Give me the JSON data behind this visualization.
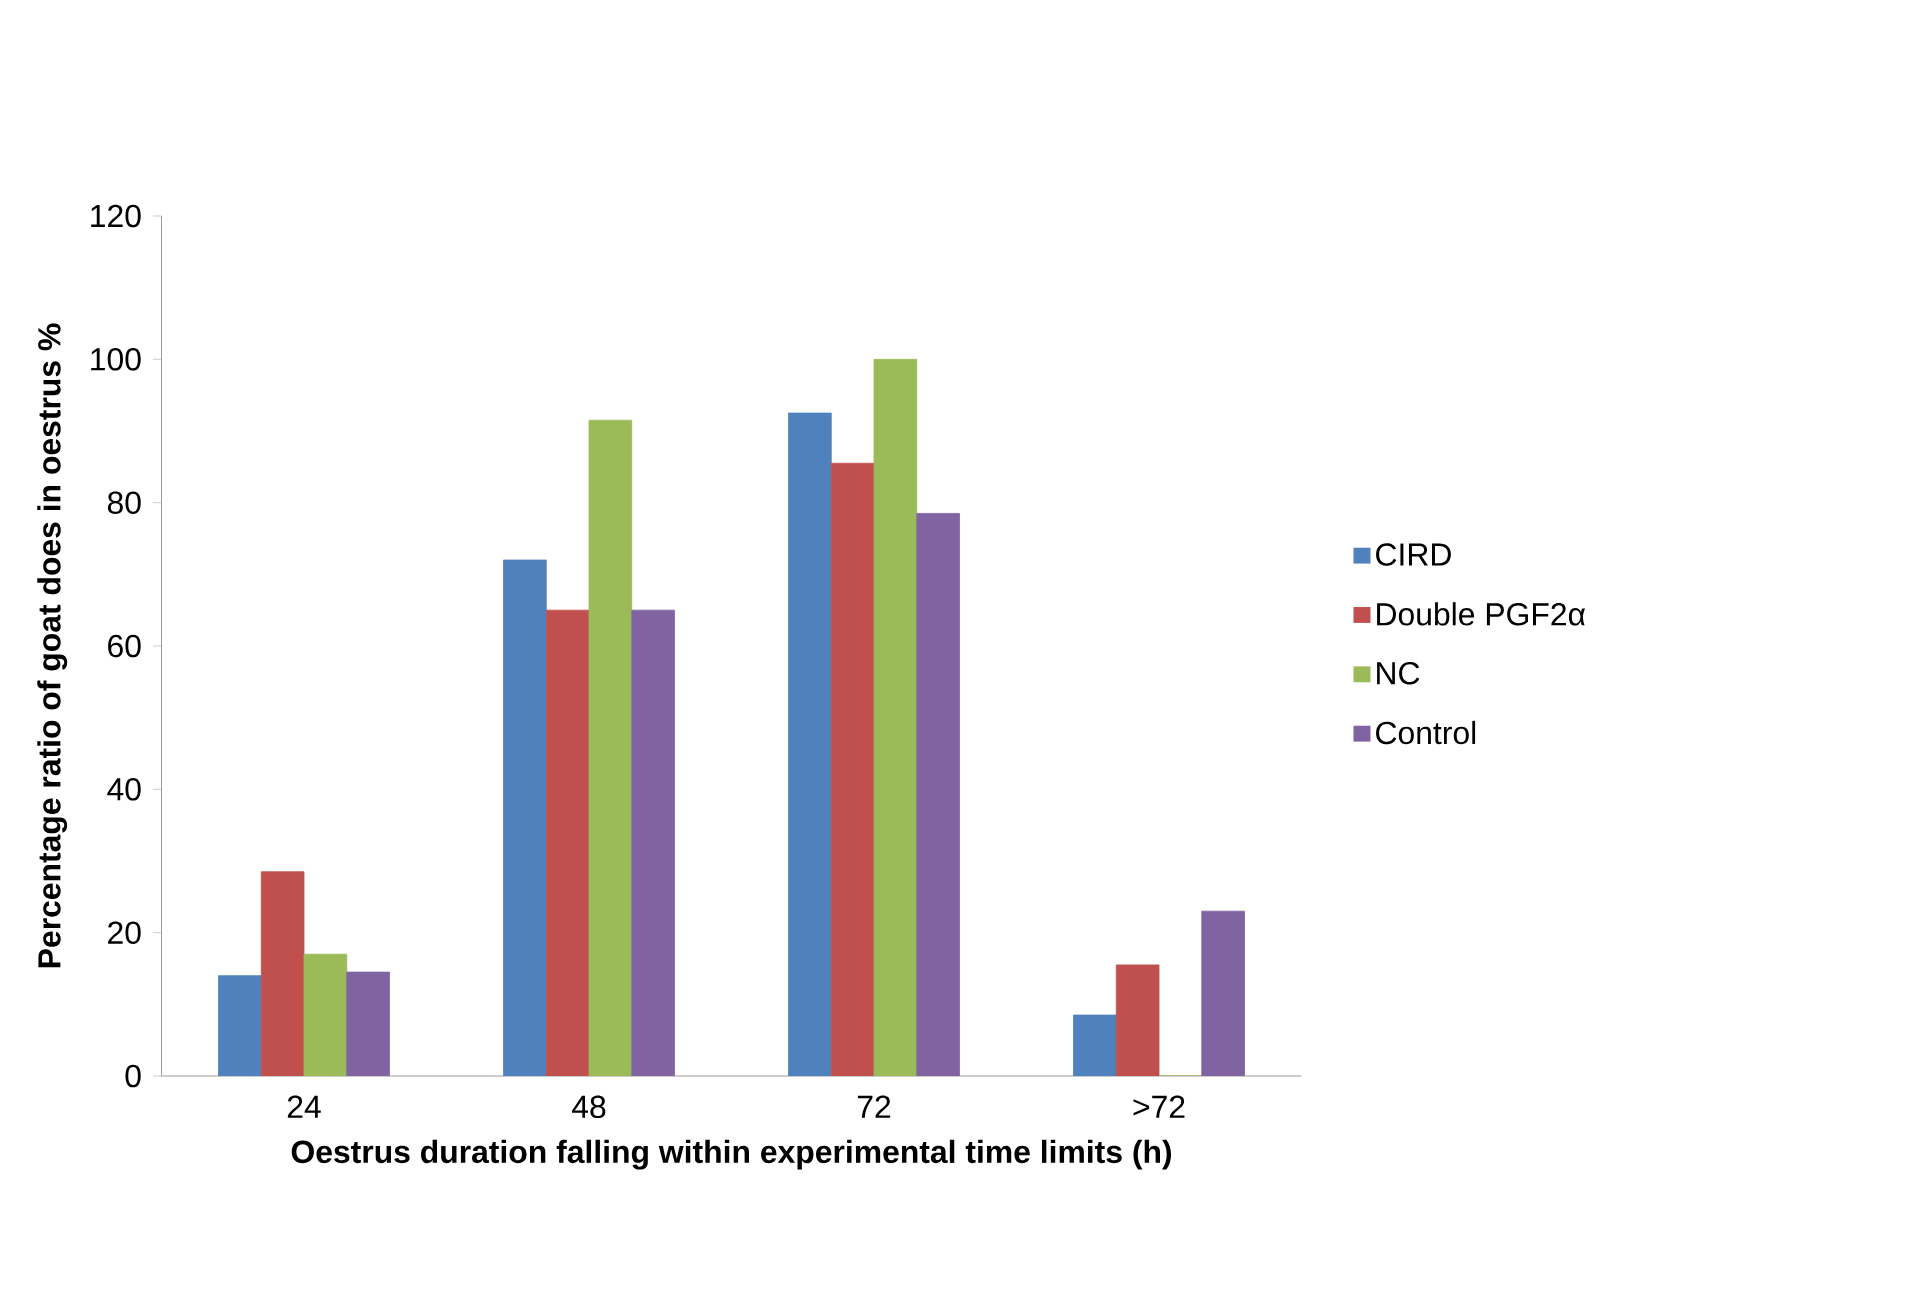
{
  "chart_data": {
    "type": "bar",
    "xlabel": "Oestrus duration falling within experimental time limits (h)",
    "ylabel": "Percentage ratio of goat does in oestrus %",
    "categories": [
      "24",
      "48",
      "72",
      ">72"
    ],
    "series": [
      {
        "name": "CIRD",
        "color": "#4f81bd",
        "values": [
          14,
          72,
          92.5,
          8.5
        ]
      },
      {
        "name": "Double PGF2α",
        "color": "#c0504d",
        "values": [
          28.5,
          65,
          85.5,
          15.5
        ]
      },
      {
        "name": "NC",
        "color": "#9bbb59",
        "values": [
          17,
          91.5,
          100,
          0
        ]
      },
      {
        "name": "Control",
        "color": "#8064a2",
        "values": [
          14.5,
          65,
          78.5,
          23
        ]
      }
    ],
    "ylim": [
      0,
      120
    ],
    "yticks": [
      0,
      20,
      40,
      60,
      80,
      100,
      120
    ],
    "legend": "right",
    "grid": false
  }
}
